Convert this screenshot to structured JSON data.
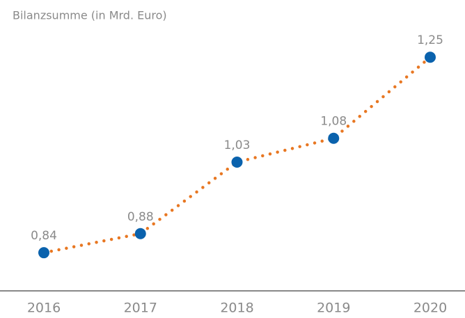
{
  "chart_data": {
    "type": "line",
    "title": "Bilanzsumme (in Mrd. Euro)",
    "categories": [
      "2016",
      "2017",
      "2018",
      "2019",
      "2020"
    ],
    "series": [
      {
        "name": "Bilanzsumme",
        "color": "#e87722",
        "marker_color": "#0a62ad",
        "values": [
          0.84,
          0.88,
          1.03,
          1.08,
          1.25
        ],
        "value_labels": [
          "0,84",
          "0,88",
          "1,03",
          "1,08",
          "1,25"
        ]
      }
    ],
    "ylim": [
      0.76,
      1.37
    ]
  }
}
